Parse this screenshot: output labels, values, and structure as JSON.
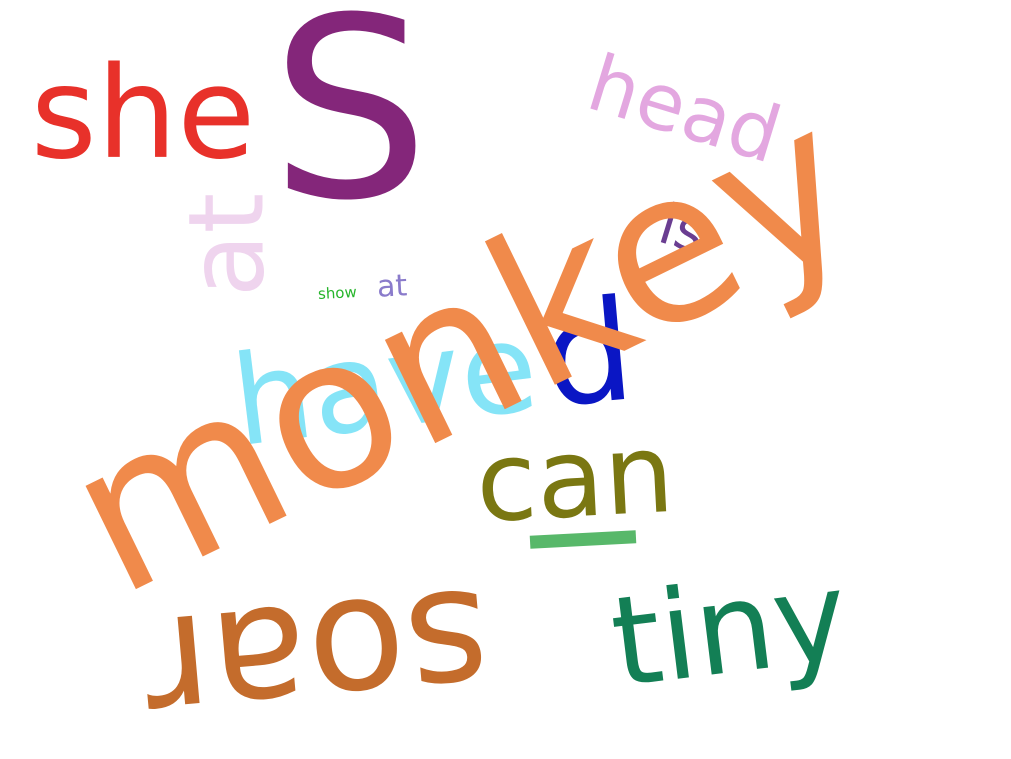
{
  "words": [
    {
      "id": "she",
      "text": "she",
      "color": "#e8312a"
    },
    {
      "id": "s",
      "text": "S",
      "color": "#84267a"
    },
    {
      "id": "head",
      "text": "head",
      "color": "#e3a7e0"
    },
    {
      "id": "at-large",
      "text": "at",
      "color": "#efd4ee"
    },
    {
      "id": "is",
      "text": "is",
      "color": "#6a3d91"
    },
    {
      "id": "show",
      "text": "show",
      "color": "#27b52c"
    },
    {
      "id": "at-small",
      "text": "at",
      "color": "#8a7bcb"
    },
    {
      "id": "have",
      "text": "have",
      "color": "#85e4f7"
    },
    {
      "id": "d",
      "text": "d",
      "color": "#0a16c4"
    },
    {
      "id": "monkey",
      "text": "monkey",
      "color": "#f08a4b"
    },
    {
      "id": "can",
      "text": "can",
      "color": "#7a7712"
    },
    {
      "id": "tiny",
      "text": "tiny",
      "color": "#137f55"
    },
    {
      "id": "soar",
      "text": "soar",
      "color": "#c46c2c"
    }
  ],
  "marks": [
    {
      "id": "green-dash",
      "color": "#58b86a"
    }
  ]
}
